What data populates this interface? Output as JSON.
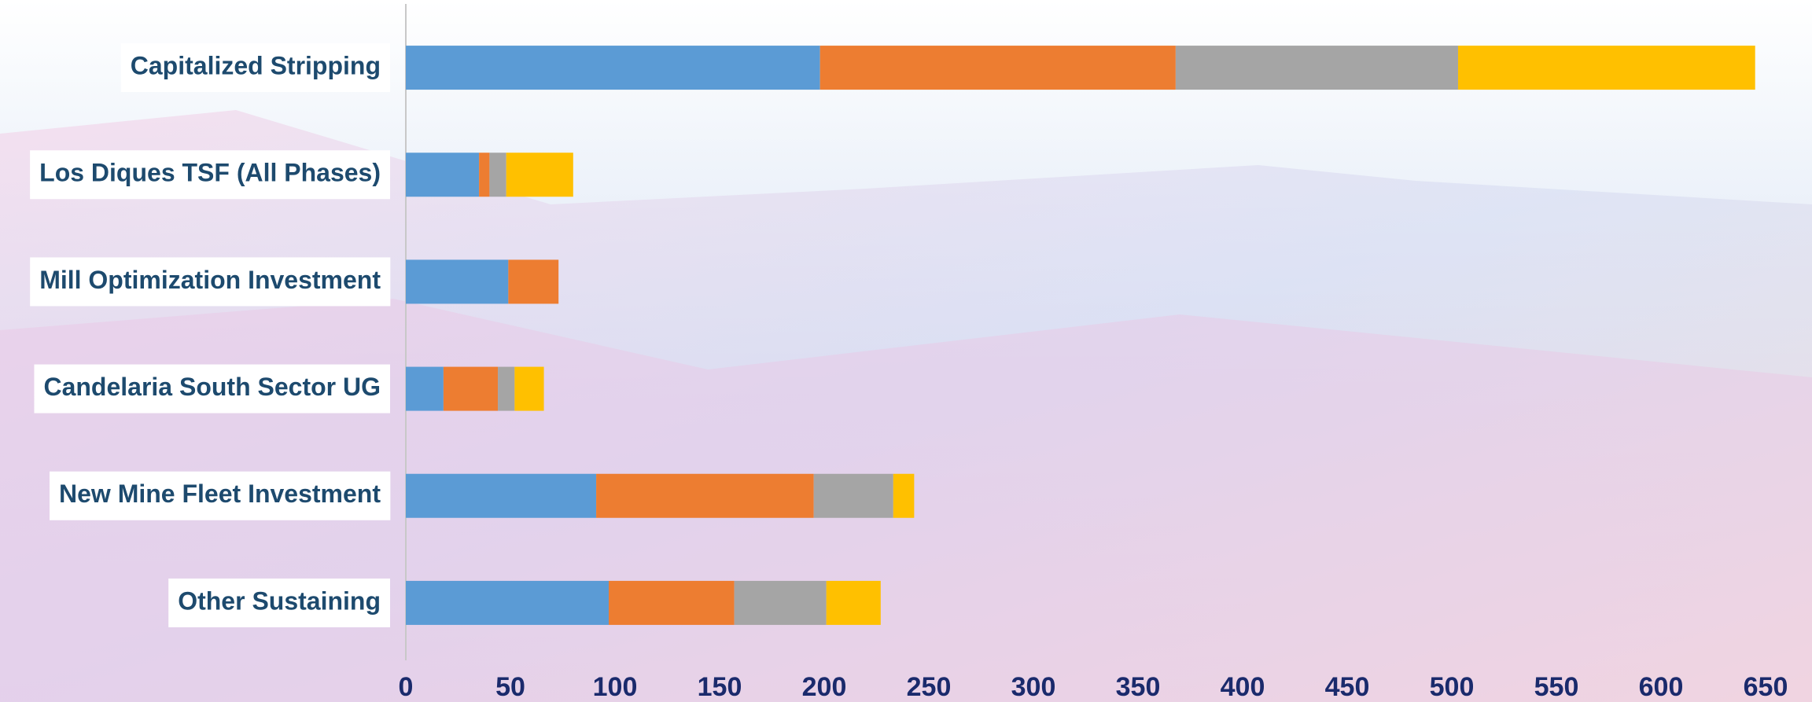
{
  "chart_data": {
    "type": "stacked-bar-horizontal",
    "categories": [
      "Capitalized Stripping",
      "Los Diques TSF (All Phases)",
      "Mill Optimization Investment",
      "Candelaria South Sector UG",
      "New Mine Fleet Investment",
      "Other Sustaining"
    ],
    "series": [
      {
        "color": "#5b9bd5",
        "values": [
          198,
          35,
          49,
          18,
          91,
          97
        ]
      },
      {
        "color": "#ed7d31",
        "values": [
          170,
          5,
          24,
          26,
          104,
          60
        ]
      },
      {
        "color": "#a5a5a5",
        "values": [
          135,
          8,
          0,
          8,
          38,
          44
        ]
      },
      {
        "color": "#ffc000",
        "values": [
          142,
          32,
          0,
          14,
          10,
          26
        ]
      }
    ],
    "xlim": [
      0,
      650
    ],
    "xticks": [
      0,
      50,
      100,
      150,
      200,
      250,
      300,
      350,
      400,
      450,
      500,
      550,
      600,
      650
    ]
  }
}
